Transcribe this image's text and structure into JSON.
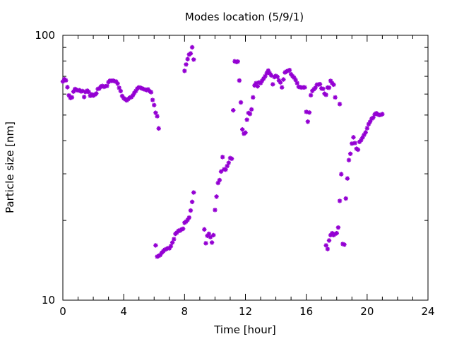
{
  "chart_data": {
    "type": "scatter",
    "title": "Modes location (5/9/1)",
    "xlabel": "Time [hour]",
    "ylabel": "Particle size [nm]",
    "xlim": [
      0,
      24
    ],
    "ylim": [
      10,
      100
    ],
    "y_scale": "log",
    "x_ticks": [
      "0",
      "4",
      "8",
      "12",
      "16",
      "20",
      "24"
    ],
    "y_ticks": [
      "10",
      "100"
    ],
    "grid": false,
    "marker_color": "#9400D3",
    "series": [
      {
        "name": "",
        "points": [
          [
            0.0,
            66.9
          ],
          [
            0.1,
            68.3
          ],
          [
            0.2,
            67.6
          ],
          [
            0.3,
            63.7
          ],
          [
            0.4,
            59.3
          ],
          [
            0.5,
            58.0
          ],
          [
            0.6,
            58.3
          ],
          [
            0.7,
            61.3
          ],
          [
            0.8,
            62.7
          ],
          [
            0.9,
            62.3
          ],
          [
            1.0,
            61.9
          ],
          [
            1.1,
            62.0
          ],
          [
            1.2,
            61.4
          ],
          [
            1.3,
            61.6
          ],
          [
            1.4,
            58.5
          ],
          [
            1.5,
            61.1
          ],
          [
            1.6,
            61.8
          ],
          [
            1.7,
            61.1
          ],
          [
            1.8,
            59.1
          ],
          [
            1.9,
            59.8
          ],
          [
            2.0,
            59.2
          ],
          [
            2.1,
            59.7
          ],
          [
            2.2,
            60.3
          ],
          [
            2.3,
            62.7
          ],
          [
            2.4,
            63.0
          ],
          [
            2.5,
            64.1
          ],
          [
            2.6,
            64.4
          ],
          [
            2.7,
            63.9
          ],
          [
            2.8,
            64.2
          ],
          [
            2.9,
            64.4
          ],
          [
            3.0,
            66.6
          ],
          [
            3.1,
            67.4
          ],
          [
            3.2,
            67.3
          ],
          [
            3.3,
            67.4
          ],
          [
            3.4,
            67.1
          ],
          [
            3.5,
            66.9
          ],
          [
            3.6,
            65.7
          ],
          [
            3.7,
            63.3
          ],
          [
            3.8,
            61.6
          ],
          [
            3.9,
            59.0
          ],
          [
            4.0,
            57.9
          ],
          [
            4.1,
            57.3
          ],
          [
            4.2,
            56.8
          ],
          [
            4.3,
            57.5
          ],
          [
            4.4,
            58.2
          ],
          [
            4.5,
            58.4
          ],
          [
            4.6,
            59.3
          ],
          [
            4.7,
            60.6
          ],
          [
            4.8,
            61.7
          ],
          [
            4.9,
            63.0
          ],
          [
            5.0,
            63.6
          ],
          [
            5.1,
            63.4
          ],
          [
            5.2,
            63.0
          ],
          [
            5.3,
            62.7
          ],
          [
            5.4,
            62.4
          ],
          [
            5.5,
            62.1
          ],
          [
            5.6,
            62.5
          ],
          [
            5.7,
            61.5
          ],
          [
            5.8,
            61.0
          ],
          [
            5.9,
            57.0
          ],
          [
            6.0,
            54.5
          ],
          [
            6.1,
            51.0
          ],
          [
            6.2,
            49.5
          ],
          [
            6.3,
            44.5
          ],
          [
            6.1,
            16.1
          ],
          [
            6.2,
            14.6
          ],
          [
            6.3,
            14.7
          ],
          [
            6.4,
            14.8
          ],
          [
            6.5,
            15.1
          ],
          [
            6.6,
            15.3
          ],
          [
            6.7,
            15.5
          ],
          [
            6.8,
            15.6
          ],
          [
            6.9,
            15.7
          ],
          [
            7.0,
            15.7
          ],
          [
            7.1,
            16.0
          ],
          [
            7.2,
            16.5
          ],
          [
            7.3,
            17.0
          ],
          [
            7.4,
            17.8
          ],
          [
            7.5,
            18.0
          ],
          [
            7.6,
            18.3
          ],
          [
            7.7,
            18.3
          ],
          [
            7.8,
            18.5
          ],
          [
            7.9,
            18.6
          ],
          [
            8.0,
            19.6
          ],
          [
            8.1,
            19.8
          ],
          [
            8.2,
            20.1
          ],
          [
            8.3,
            20.5
          ],
          [
            8.4,
            21.8
          ],
          [
            8.5,
            23.5
          ],
          [
            8.6,
            25.5
          ],
          [
            8.0,
            73.4
          ],
          [
            8.1,
            77.6
          ],
          [
            8.2,
            81.3
          ],
          [
            8.3,
            84.6
          ],
          [
            8.4,
            85.4
          ],
          [
            8.5,
            90.1
          ],
          [
            8.6,
            81.0
          ],
          [
            9.3,
            18.5
          ],
          [
            9.4,
            16.4
          ],
          [
            9.5,
            17.5
          ],
          [
            9.6,
            17.8
          ],
          [
            9.7,
            17.3
          ],
          [
            9.8,
            16.5
          ],
          [
            9.9,
            17.6
          ],
          [
            10.0,
            21.9
          ],
          [
            10.1,
            24.6
          ],
          [
            10.2,
            27.7
          ],
          [
            10.3,
            28.4
          ],
          [
            10.4,
            30.6
          ],
          [
            10.5,
            34.7
          ],
          [
            10.6,
            31.2
          ],
          [
            10.7,
            31.1
          ],
          [
            10.8,
            32.1
          ],
          [
            10.9,
            33.0
          ],
          [
            11.0,
            34.4
          ],
          [
            11.1,
            34.2
          ],
          [
            11.2,
            52.1
          ],
          [
            11.3,
            79.8
          ],
          [
            11.4,
            79.3
          ],
          [
            11.5,
            79.6
          ],
          [
            11.6,
            67.5
          ],
          [
            11.7,
            55.8
          ],
          [
            11.8,
            44.1
          ],
          [
            11.9,
            42.5
          ],
          [
            12.0,
            42.9
          ],
          [
            12.1,
            48.0
          ],
          [
            12.2,
            50.9
          ],
          [
            12.3,
            50.5
          ],
          [
            12.4,
            52.5
          ],
          [
            12.5,
            58.3
          ],
          [
            12.6,
            64.7
          ],
          [
            12.7,
            66.0
          ],
          [
            12.8,
            64.2
          ],
          [
            12.9,
            66.4
          ],
          [
            13.0,
            66.0
          ],
          [
            13.1,
            67.4
          ],
          [
            13.2,
            68.7
          ],
          [
            13.3,
            70.1
          ],
          [
            13.4,
            72.0
          ],
          [
            13.5,
            73.6
          ],
          [
            13.6,
            71.9
          ],
          [
            13.7,
            70.6
          ],
          [
            13.8,
            65.3
          ],
          [
            13.9,
            69.6
          ],
          [
            14.0,
            70.3
          ],
          [
            14.1,
            69.7
          ],
          [
            14.2,
            67.6
          ],
          [
            14.3,
            66.4
          ],
          [
            14.4,
            63.6
          ],
          [
            14.5,
            68.1
          ],
          [
            14.6,
            72.4
          ],
          [
            14.7,
            73.1
          ],
          [
            14.8,
            73.4
          ],
          [
            14.9,
            73.9
          ],
          [
            15.0,
            71.3
          ],
          [
            15.1,
            70.1
          ],
          [
            15.2,
            69.2
          ],
          [
            15.3,
            67.8
          ],
          [
            15.4,
            66.0
          ],
          [
            15.5,
            63.9
          ],
          [
            15.6,
            63.7
          ],
          [
            15.7,
            63.5
          ],
          [
            15.8,
            63.6
          ],
          [
            15.9,
            63.6
          ],
          [
            16.0,
            51.4
          ],
          [
            16.1,
            47.2
          ],
          [
            16.2,
            51.1
          ],
          [
            16.3,
            59.4
          ],
          [
            16.4,
            61.7
          ],
          [
            16.5,
            62.6
          ],
          [
            16.6,
            63.4
          ],
          [
            16.7,
            65.1
          ],
          [
            16.8,
            65.2
          ],
          [
            16.9,
            65.4
          ],
          [
            17.0,
            63.0
          ],
          [
            17.1,
            62.8
          ],
          [
            17.2,
            60.2
          ],
          [
            17.3,
            59.6
          ],
          [
            17.4,
            63.5
          ],
          [
            17.5,
            63.4
          ],
          [
            17.6,
            67.3
          ],
          [
            17.7,
            66.0
          ],
          [
            17.8,
            65.1
          ],
          [
            17.9,
            58.3
          ],
          [
            17.3,
            16.1
          ],
          [
            17.4,
            15.6
          ],
          [
            17.5,
            16.8
          ],
          [
            17.6,
            17.6
          ],
          [
            17.7,
            17.9
          ],
          [
            17.8,
            17.6
          ],
          [
            17.9,
            17.8
          ],
          [
            18.0,
            17.9
          ],
          [
            18.1,
            18.8
          ],
          [
            18.2,
            23.7
          ],
          [
            18.3,
            29.9
          ],
          [
            18.4,
            16.3
          ],
          [
            18.5,
            16.2
          ],
          [
            18.6,
            24.2
          ],
          [
            18.7,
            28.8
          ],
          [
            18.8,
            33.8
          ],
          [
            18.9,
            35.7
          ],
          [
            19.0,
            39.0
          ],
          [
            19.1,
            41.2
          ],
          [
            19.2,
            39.2
          ],
          [
            19.3,
            37.3
          ],
          [
            19.4,
            37.0
          ],
          [
            19.5,
            39.6
          ],
          [
            19.6,
            40.2
          ],
          [
            19.7,
            41.1
          ],
          [
            19.8,
            42.1
          ],
          [
            19.9,
            43.0
          ],
          [
            20.0,
            44.6
          ],
          [
            20.1,
            46.2
          ],
          [
            20.2,
            47.2
          ],
          [
            20.3,
            48.4
          ],
          [
            20.4,
            48.9
          ],
          [
            20.5,
            50.3
          ],
          [
            20.6,
            50.8
          ],
          [
            20.7,
            50.3
          ],
          [
            20.8,
            50.0
          ],
          [
            20.9,
            50.1
          ],
          [
            21.0,
            50.4
          ],
          [
            18.2,
            55.0
          ]
        ]
      }
    ]
  }
}
